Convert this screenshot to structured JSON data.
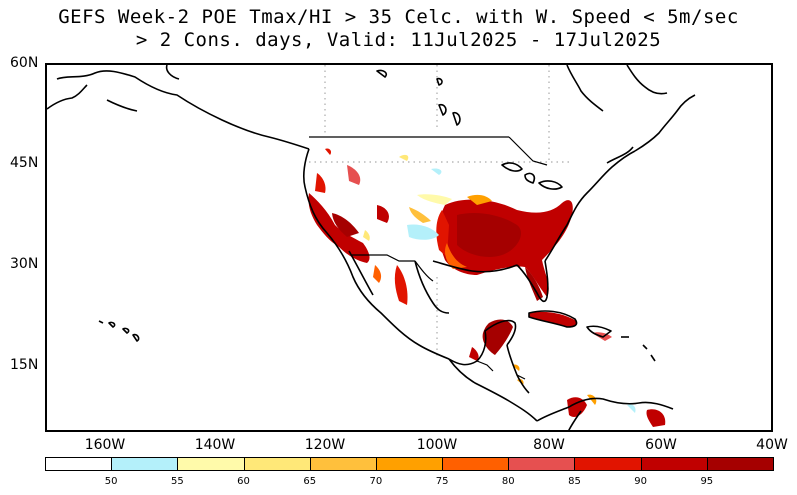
{
  "title": {
    "line1": "GEFS Week-2 POE Tmax/HI > 35 Celc. with W. Speed < 5m/sec",
    "line2": "> 2 Cons. days, Valid: 11Jul2025 - 17Jul2025"
  },
  "map": {
    "lat_labels": [
      "60N",
      "45N",
      "30N",
      "15N"
    ],
    "lon_labels": [
      "160W",
      "140W",
      "120W",
      "100W",
      "80W",
      "60W",
      "40W"
    ],
    "extent": {
      "lon": [
        -170,
        -40
      ],
      "lat": [
        5,
        60
      ]
    },
    "gridlines": "dotted"
  },
  "colorbar": {
    "ticks": [
      "50",
      "55",
      "60",
      "65",
      "70",
      "75",
      "80",
      "85",
      "90",
      "95"
    ],
    "colors": [
      "#ffffff",
      "#b4f0fa",
      "#fffaaa",
      "#ffe878",
      "#ffc03c",
      "#ffa000",
      "#ff6000",
      "#e65050",
      "#e11400",
      "#c00000",
      "#a50000"
    ]
  }
}
